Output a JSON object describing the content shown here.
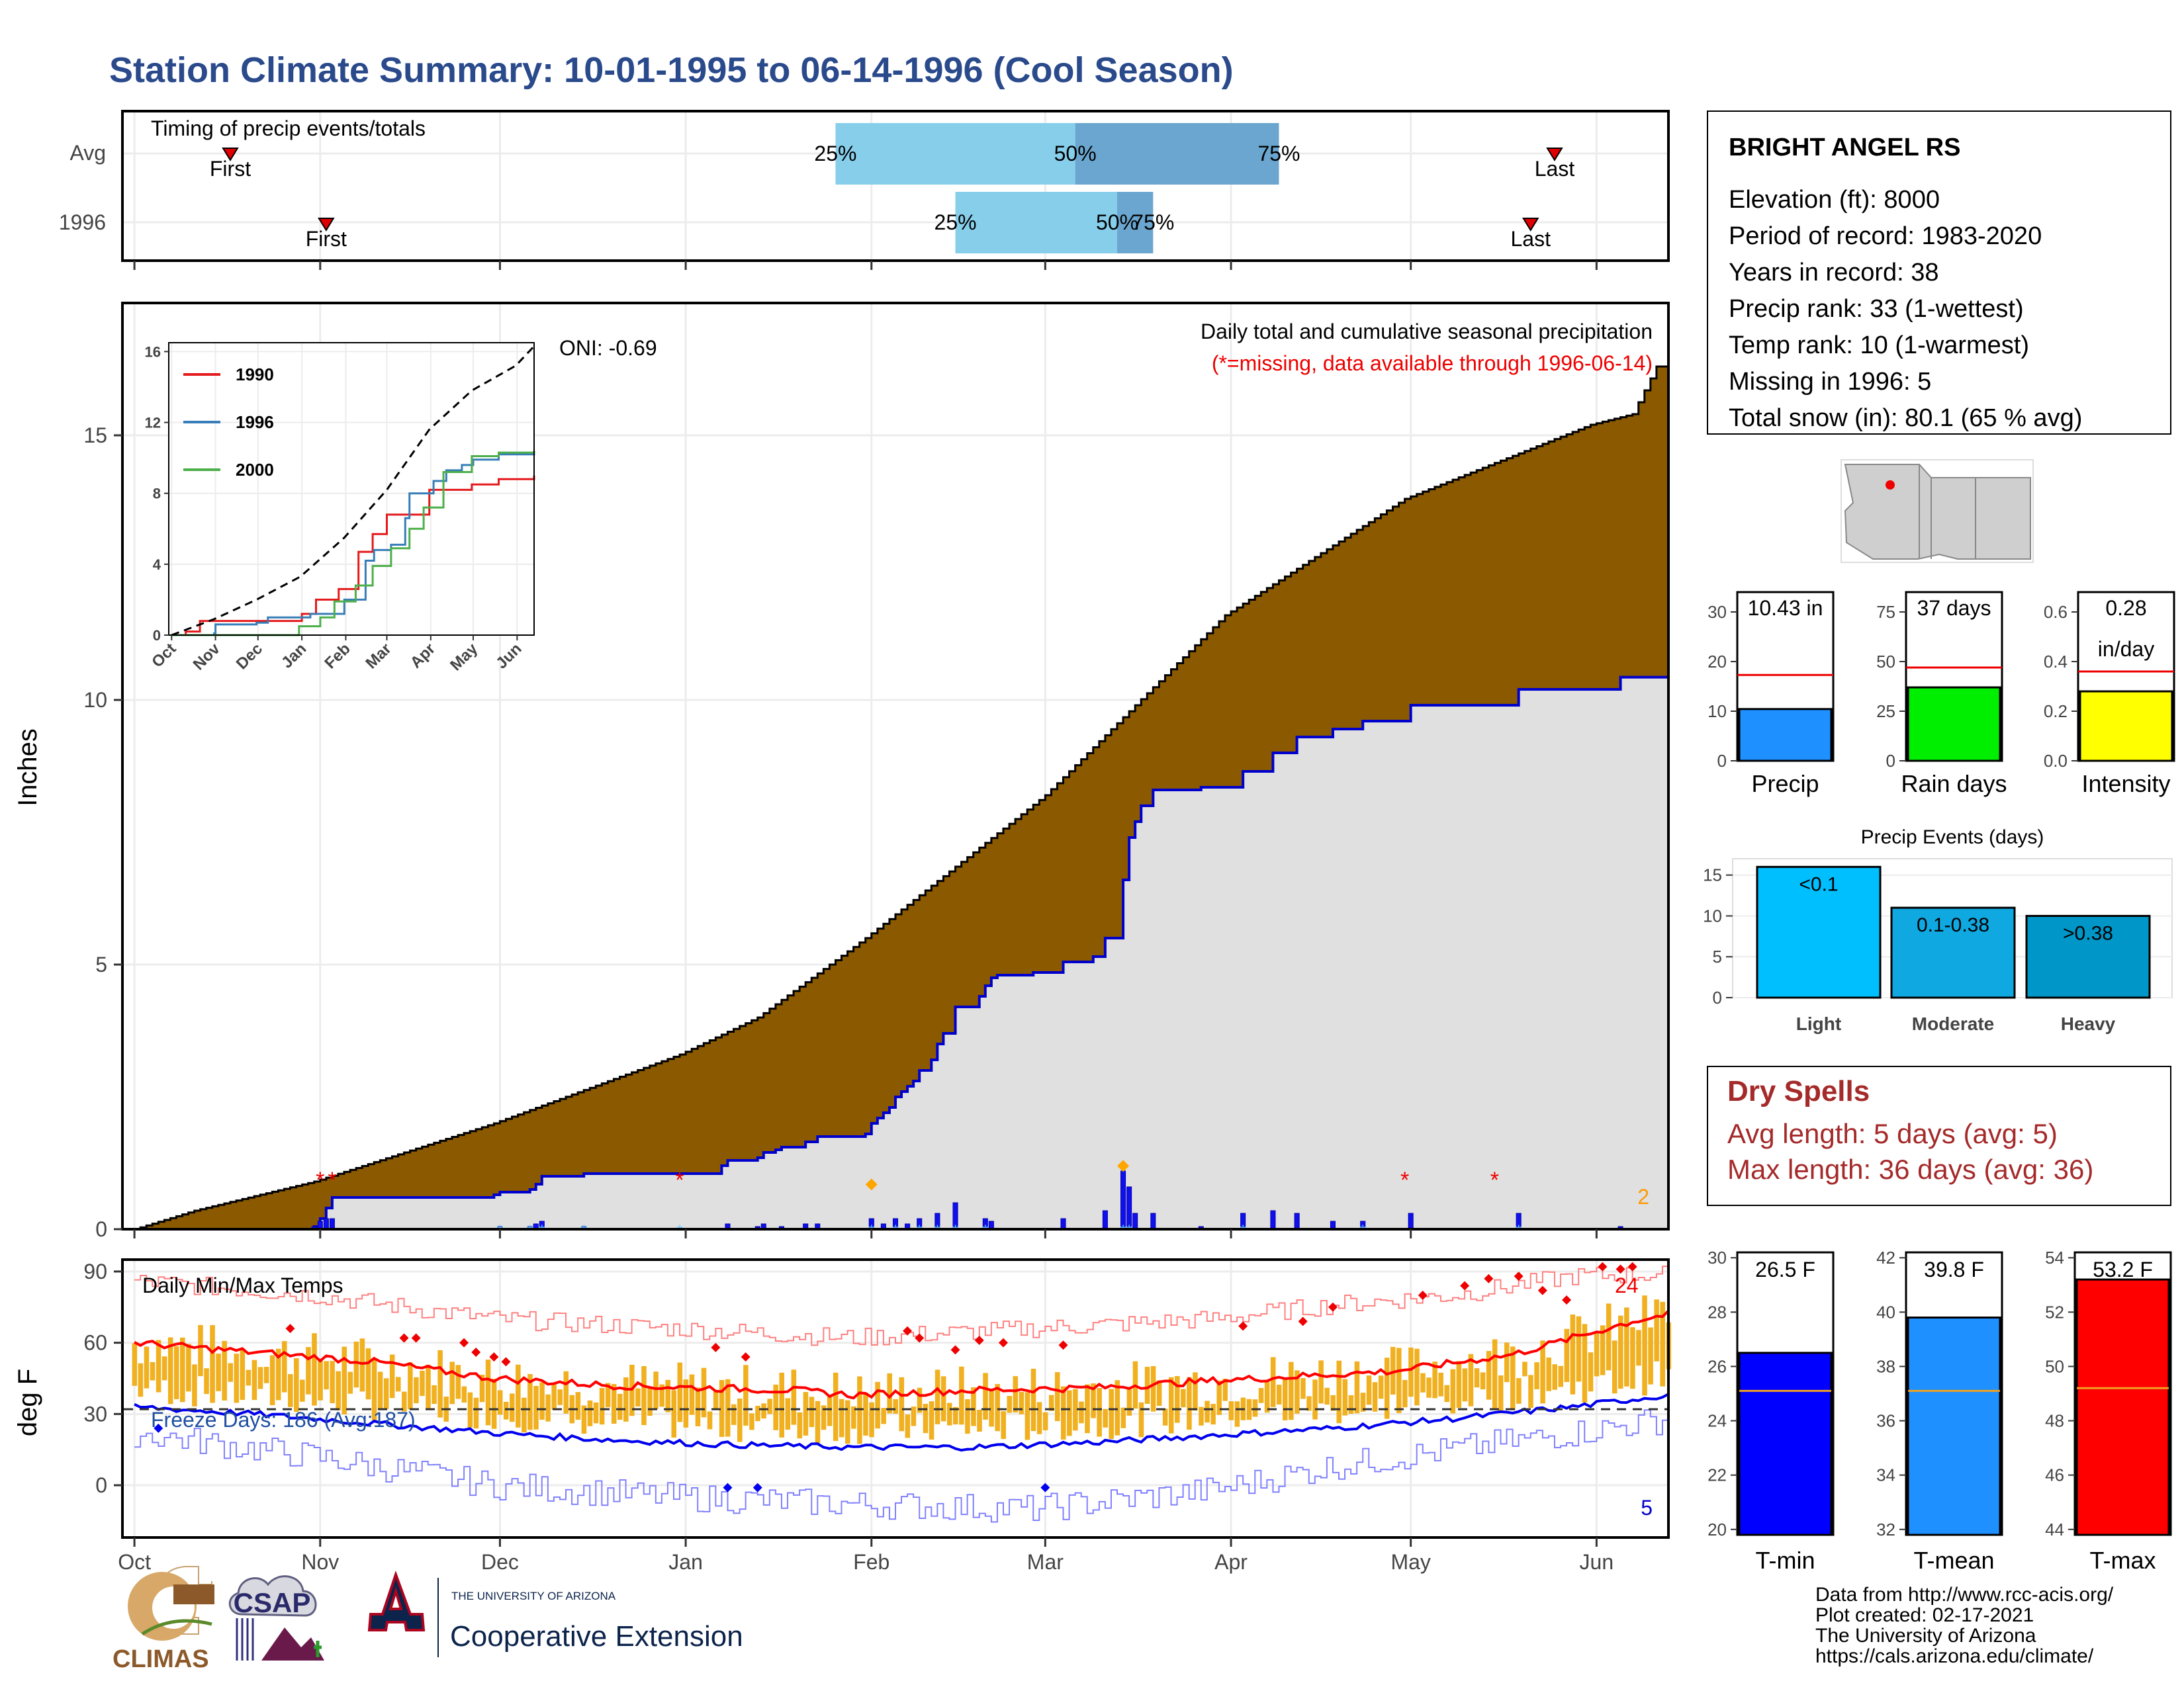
{
  "header": {
    "title": "Station Climate Summary: 10-01-1995 to 06-14-1996 (Cool Season)"
  },
  "colors": {
    "title": "#2a4a8c",
    "cumulative_fill": "#8b5a00",
    "observed_fill": "#e0e0e0",
    "observed_line": "#0000cc",
    "bar_light_blue": "#87ceeb",
    "bar_dark_blue": "#6aa6cf",
    "temp_bars": "#f0b020",
    "dry_spells": "#a52a2a"
  },
  "timing_panel": {
    "title": "Timing of precip events/totals",
    "rows": [
      {
        "label": "Avg",
        "first_day": 16,
        "p25_day": 117,
        "p50_day": 157,
        "p75_day": 191,
        "last_day": 237
      },
      {
        "label": "1996",
        "first_day": 32,
        "p25_day": 137,
        "p50_day": 164,
        "p75_day": 170,
        "last_day": 233
      }
    ],
    "p25_label": "25%",
    "p50_label": "50%",
    "p75_label": "75%",
    "first_label": "First",
    "last_label": "Last"
  },
  "station": {
    "name": "BRIGHT ANGEL RS",
    "lines": [
      "Elevation (ft): 8000",
      "Period of record: 1983-2020",
      "Years in record: 38",
      "Precip rank: 33 (1-wettest)",
      "Temp rank: 10 (1-warmest)",
      "Missing in 1996: 5",
      "Total snow (in): 80.1 (65 % avg)"
    ]
  },
  "precip_chart": {
    "ylabel": "Inches",
    "oni": "ONI: -0.69",
    "note1": "Daily total and cumulative seasonal precipitation",
    "note2": "(*=missing, data available through 1996-06-14)",
    "corner_count": "2",
    "yticks": [
      "0",
      "5",
      "10",
      "15"
    ],
    "months": [
      "Oct",
      "Nov",
      "Dec",
      "Jan",
      "Feb",
      "Mar",
      "Apr",
      "May",
      "Jun"
    ]
  },
  "inset": {
    "yticks": [
      "0",
      "4",
      "8",
      "12",
      "16"
    ],
    "months": [
      "Oct",
      "Nov",
      "Dec",
      "Jan",
      "Feb",
      "Mar",
      "Apr",
      "May",
      "Jun"
    ],
    "legend": [
      {
        "name": "1990",
        "color": "#e41a1c"
      },
      {
        "name": "1996",
        "color": "#377eb8"
      },
      {
        "name": "2000",
        "color": "#4daf4a"
      }
    ]
  },
  "temp_chart": {
    "ylabel": "deg F",
    "title": "Daily Min/Max Temps",
    "freeze_label": "Freeze Days: 186 (Avg:187)",
    "hot_count": "24",
    "cold_count": "5",
    "yticks": [
      "0",
      "30",
      "60",
      "90"
    ],
    "months": [
      "Oct",
      "Nov",
      "Dec",
      "Jan",
      "Feb",
      "Mar",
      "Apr",
      "May",
      "Jun"
    ]
  },
  "summary_bars": [
    {
      "name": "Precip",
      "label": "10.43 in",
      "value": 10.43,
      "avg": 17.3,
      "ymax": 34,
      "yticks": [
        "0",
        "10",
        "20",
        "30"
      ],
      "color": "#1e90ff"
    },
    {
      "name": "Rain days",
      "label": "37 days",
      "value": 37,
      "avg": 47,
      "ymax": 85,
      "yticks": [
        "0",
        "25",
        "50",
        "75"
      ],
      "color": "#00ee00"
    },
    {
      "name": "Intensity",
      "label": "0.28",
      "label2": "in/day",
      "value": 0.28,
      "avg": 0.36,
      "ymax": 0.68,
      "yticks": [
        "0.0",
        "0.2",
        "0.4",
        "0.6"
      ],
      "color": "#ffff00"
    }
  ],
  "precip_events": {
    "title": "Precip Events (days)",
    "yticks": [
      "0",
      "5",
      "10",
      "15"
    ],
    "bars": [
      {
        "name": "Light",
        "label": "<0.1",
        "value": 16,
        "color": "#00bfff"
      },
      {
        "name": "Moderate",
        "label": "0.1-0.38",
        "value": 11,
        "color": "#10a8e0"
      },
      {
        "name": "Heavy",
        "label": ">0.38",
        "value": 10,
        "color": "#0096c8"
      }
    ]
  },
  "dry_spells": {
    "title": "Dry Spells",
    "avg_length": "Avg length: 5 days (avg: 5)",
    "max_length": "Max length: 36 days (avg: 36)"
  },
  "temp_bars": [
    {
      "name": "T-min",
      "label": "26.5 F",
      "value": 26.5,
      "avg": 25.1,
      "ymin": 19.8,
      "ymax": 30.2,
      "yticks": [
        "20",
        "22",
        "24",
        "26",
        "28",
        "30"
      ],
      "color": "#0000ff"
    },
    {
      "name": "T-mean",
      "label": "39.8 F",
      "value": 39.8,
      "avg": 37.1,
      "ymin": 31.8,
      "ymax": 42.2,
      "yticks": [
        "32",
        "34",
        "36",
        "38",
        "40",
        "42"
      ],
      "color": "#1e90ff"
    },
    {
      "name": "T-max",
      "label": "53.2 F",
      "value": 53.2,
      "avg": 49.2,
      "ymin": 43.8,
      "ymax": 54.2,
      "yticks": [
        "44",
        "46",
        "48",
        "50",
        "52",
        "54"
      ],
      "color": "#ff0000"
    }
  ],
  "footer": {
    "logo1": "CLIMAS",
    "logo2": "CSAP",
    "logo3_small": "THE UNIVERSITY OF ARIZONA",
    "logo3_big": "Cooperative Extension",
    "credits": [
      "Data from http://www.rcc-acis.org/",
      "Plot created: 02-17-2021",
      "The University of Arizona",
      "https://cals.arizona.edu/climate/"
    ]
  },
  "chart_data": [
    {
      "type": "area",
      "name": "cumulative precipitation",
      "x_unit": "day of season (0 = Oct 1)",
      "observed_cumulative": [
        [
          0,
          0
        ],
        [
          30,
          0.05
        ],
        [
          31,
          0.2
        ],
        [
          32,
          0.4
        ],
        [
          33,
          0.6
        ],
        [
          60,
          0.65
        ],
        [
          61,
          0.7
        ],
        [
          66,
          0.75
        ],
        [
          67,
          0.85
        ],
        [
          68,
          1.0
        ],
        [
          75,
          1.05
        ],
        [
          98,
          1.2
        ],
        [
          99,
          1.3
        ],
        [
          104,
          1.35
        ],
        [
          105,
          1.45
        ],
        [
          107,
          1.5
        ],
        [
          108,
          1.55
        ],
        [
          112,
          1.65
        ],
        [
          114,
          1.75
        ],
        [
          122,
          1.8
        ],
        [
          123,
          2.0
        ],
        [
          124,
          2.1
        ],
        [
          125,
          2.2
        ],
        [
          126,
          2.3
        ],
        [
          127,
          2.5
        ],
        [
          128,
          2.6
        ],
        [
          129,
          2.7
        ],
        [
          130,
          2.8
        ],
        [
          131,
          3.0
        ],
        [
          133,
          3.2
        ],
        [
          134,
          3.5
        ],
        [
          135,
          3.7
        ],
        [
          137,
          4.2
        ],
        [
          141,
          4.4
        ],
        [
          142,
          4.6
        ],
        [
          143,
          4.75
        ],
        [
          144,
          4.8
        ],
        [
          150,
          4.85
        ],
        [
          155,
          5.05
        ],
        [
          160,
          5.15
        ],
        [
          162,
          5.5
        ],
        [
          165,
          6.6
        ],
        [
          166,
          7.4
        ],
        [
          167,
          7.7
        ],
        [
          168,
          8.0
        ],
        [
          170,
          8.3
        ],
        [
          178,
          8.35
        ],
        [
          185,
          8.65
        ],
        [
          190,
          9.0
        ],
        [
          194,
          9.3
        ],
        [
          200,
          9.45
        ],
        [
          205,
          9.6
        ],
        [
          213,
          9.9
        ],
        [
          231,
          10.2
        ],
        [
          248,
          10.43
        ],
        [
          256,
          10.43
        ]
      ],
      "avg_cumulative": [
        [
          0,
          0
        ],
        [
          10,
          0.35
        ],
        [
          30,
          0.9
        ],
        [
          60,
          2.0
        ],
        [
          91,
          3.3
        ],
        [
          104,
          4.0
        ],
        [
          122,
          5.5
        ],
        [
          152,
          8.2
        ],
        [
          182,
          11.6
        ],
        [
          212,
          13.8
        ],
        [
          243,
          15.2
        ],
        [
          250,
          15.4
        ],
        [
          254,
          16.3
        ],
        [
          256,
          16.3
        ]
      ],
      "daily_precip": [
        [
          30,
          0.05
        ],
        [
          31,
          0.15
        ],
        [
          32,
          0.2
        ],
        [
          33,
          0.2
        ],
        [
          61,
          0.05
        ],
        [
          66,
          0.05
        ],
        [
          67,
          0.1
        ],
        [
          68,
          0.15
        ],
        [
          75,
          0.05
        ],
        [
          99,
          0.1
        ],
        [
          104,
          0.05
        ],
        [
          105,
          0.1
        ],
        [
          108,
          0.05
        ],
        [
          112,
          0.1
        ],
        [
          114,
          0.1
        ],
        [
          123,
          0.2
        ],
        [
          125,
          0.1
        ],
        [
          127,
          0.2
        ],
        [
          129,
          0.1
        ],
        [
          131,
          0.2
        ],
        [
          134,
          0.3
        ],
        [
          137,
          0.5
        ],
        [
          142,
          0.2
        ],
        [
          143,
          0.15
        ],
        [
          155,
          0.2
        ],
        [
          162,
          0.35
        ],
        [
          165,
          1.1
        ],
        [
          166,
          0.8
        ],
        [
          167,
          0.3
        ],
        [
          170,
          0.3
        ],
        [
          178,
          0.05
        ],
        [
          185,
          0.3
        ],
        [
          190,
          0.35
        ],
        [
          194,
          0.3
        ],
        [
          200,
          0.15
        ],
        [
          205,
          0.15
        ],
        [
          213,
          0.3
        ],
        [
          231,
          0.3
        ],
        [
          248,
          0.05
        ]
      ],
      "missing_days": [
        33,
        91,
        212,
        227
      ],
      "ylim": [
        0,
        17.5
      ]
    },
    {
      "type": "line",
      "name": "inset cumulative precipitation",
      "x_unit": "day of season (0 = Oct 1)",
      "series": [
        {
          "name": "1990",
          "values": [
            [
              0,
              0
            ],
            [
              10,
              0.2
            ],
            [
              20,
              0.8
            ],
            [
              40,
              0.8
            ],
            [
              70,
              0.8
            ],
            [
              92,
              1.2
            ],
            [
              102,
              2.0
            ],
            [
              118,
              2.6
            ],
            [
              132,
              4.7
            ],
            [
              142,
              5.7
            ],
            [
              152,
              6.8
            ],
            [
              182,
              8.2
            ],
            [
              212,
              8.5
            ],
            [
              231,
              8.8
            ],
            [
              256,
              9.0
            ]
          ]
        },
        {
          "name": "1996",
          "values": [
            [
              0,
              0
            ],
            [
              30,
              0.1
            ],
            [
              31,
              0.6
            ],
            [
              60,
              0.7
            ],
            [
              68,
              1.0
            ],
            [
              98,
              1.2
            ],
            [
              122,
              2.0
            ],
            [
              137,
              4.2
            ],
            [
              143,
              4.8
            ],
            [
              155,
              5.1
            ],
            [
              165,
              6.6
            ],
            [
              168,
              8.0
            ],
            [
              185,
              8.7
            ],
            [
              194,
              9.3
            ],
            [
              205,
              9.6
            ],
            [
              213,
              9.9
            ],
            [
              231,
              10.2
            ],
            [
              256,
              10.4
            ]
          ]
        },
        {
          "name": "2000",
          "values": [
            [
              0,
              0
            ],
            [
              50,
              0
            ],
            [
              90,
              0.5
            ],
            [
              105,
              1.0
            ],
            [
              115,
              1.9
            ],
            [
              130,
              2.8
            ],
            [
              142,
              3.9
            ],
            [
              155,
              4.9
            ],
            [
              168,
              6.0
            ],
            [
              178,
              7.2
            ],
            [
              192,
              9.2
            ],
            [
              212,
              10.1
            ],
            [
              231,
              10.3
            ],
            [
              256,
              10.4
            ]
          ]
        },
        {
          "name": "avg",
          "values": [
            [
              0,
              0
            ],
            [
              30,
              0.9
            ],
            [
              60,
              2.0
            ],
            [
              91,
              3.3
            ],
            [
              122,
              5.5
            ],
            [
              152,
              8.2
            ],
            [
              182,
              11.6
            ],
            [
              212,
              13.8
            ],
            [
              243,
              15.2
            ],
            [
              256,
              16.3
            ]
          ]
        }
      ],
      "ylim": [
        0,
        16.5
      ]
    },
    {
      "type": "line",
      "name": "daily temperatures",
      "x_unit": "day of season (0 = Oct 1)",
      "series": [
        {
          "name": "avg max",
          "values": [
            [
              0,
              60
            ],
            [
              20,
              56
            ],
            [
              40,
              52
            ],
            [
              60,
              45
            ],
            [
              80,
              42
            ],
            [
              110,
              40
            ],
            [
              120,
              38
            ],
            [
              140,
              40
            ],
            [
              160,
              41
            ],
            [
              180,
              44
            ],
            [
              210,
              48
            ],
            [
              230,
              55
            ],
            [
              240,
              62
            ],
            [
              250,
              69
            ],
            [
              256,
              72
            ]
          ]
        },
        {
          "name": "avg min",
          "values": [
            [
              0,
              33
            ],
            [
              20,
              30
            ],
            [
              40,
              26
            ],
            [
              60,
              22
            ],
            [
              80,
              19
            ],
            [
              100,
              17
            ],
            [
              120,
              16
            ],
            [
              140,
              16
            ],
            [
              160,
              18
            ],
            [
              180,
              21
            ],
            [
              200,
              24
            ],
            [
              220,
              28
            ],
            [
              240,
              33
            ],
            [
              256,
              38
            ]
          ]
        },
        {
          "name": "record high",
          "values": [
            [
              0,
              86
            ],
            [
              30,
              80
            ],
            [
              60,
              70
            ],
            [
              90,
              66
            ],
            [
              120,
              62
            ],
            [
              150,
              66
            ],
            [
              180,
              70
            ],
            [
              200,
              76
            ],
            [
              220,
              80
            ],
            [
              240,
              88
            ],
            [
              256,
              89
            ]
          ]
        },
        {
          "name": "record low",
          "values": [
            [
              0,
              22
            ],
            [
              30,
              12
            ],
            [
              60,
              0
            ],
            [
              90,
              -5
            ],
            [
              120,
              -8
            ],
            [
              150,
              -10
            ],
            [
              180,
              -2
            ],
            [
              200,
              8
            ],
            [
              220,
              15
            ],
            [
              240,
              22
            ],
            [
              256,
              28
            ]
          ]
        }
      ],
      "freeze_line": 32,
      "ylim": [
        -22,
        95
      ]
    }
  ]
}
